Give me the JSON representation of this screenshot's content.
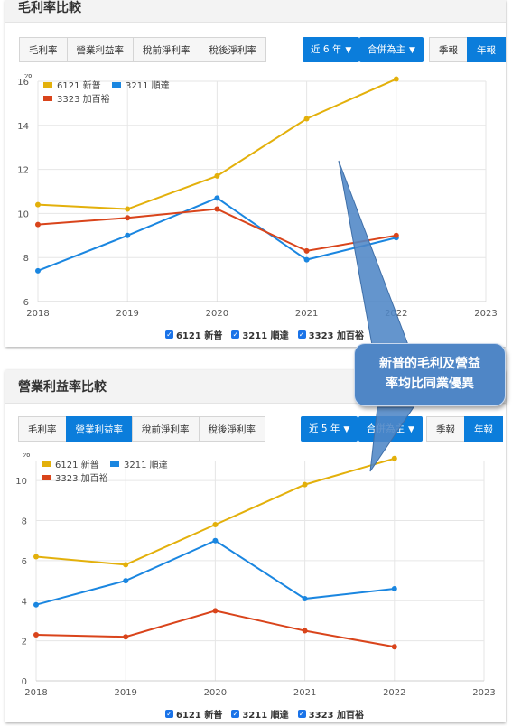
{
  "panel1": {
    "title": "毛利率比較",
    "tabs": [
      {
        "label": "毛利率",
        "active": true
      },
      {
        "label": "營業利益率",
        "active": false
      },
      {
        "label": "稅前淨利率",
        "active": false
      },
      {
        "label": "稅後淨利率",
        "active": false
      }
    ],
    "range_label": "近 6 年",
    "basis_label": "合併為主",
    "quarter_label": "季報",
    "year_label": "年報"
  },
  "panel2": {
    "title": "營業利益率比較",
    "tabs": [
      {
        "label": "毛利率",
        "active": false
      },
      {
        "label": "營業利益率",
        "active": true
      },
      {
        "label": "稅前淨利率",
        "active": false
      },
      {
        "label": "稅後淨利率",
        "active": false
      }
    ],
    "range_label": "近 5 年",
    "basis_label": "合併為主",
    "quarter_label": "季報",
    "year_label": "年報"
  },
  "callout": {
    "line1": "新普的毛利及營益",
    "line2": "率均比同業優異"
  },
  "colors": {
    "s6121": "#e3b00b",
    "s3211": "#1a86e0",
    "s3323": "#d9441b",
    "accent": "#0b7ddb"
  },
  "chart_data": [
    {
      "type": "line",
      "unit": "%",
      "x": [
        2018,
        2019,
        2020,
        2021,
        2022,
        2023
      ],
      "xlim": [
        2018,
        2023
      ],
      "ylim": [
        6,
        16
      ],
      "yticks": [
        6,
        8,
        10,
        12,
        14,
        16
      ],
      "grid": true,
      "legend_position": "top-left",
      "series": [
        {
          "name": "6121 新普",
          "x": [
            2018,
            2019,
            2020,
            2021,
            2022
          ],
          "values": [
            10.4,
            10.2,
            11.7,
            14.3,
            16.1
          ]
        },
        {
          "name": "3211 順達",
          "x": [
            2018,
            2019,
            2020,
            2021,
            2022
          ],
          "values": [
            7.4,
            9.0,
            10.7,
            7.9,
            8.9
          ]
        },
        {
          "name": "3323 加百裕",
          "x": [
            2018,
            2019,
            2020,
            2021,
            2022
          ],
          "values": [
            9.5,
            9.8,
            10.2,
            8.3,
            9.0
          ]
        }
      ]
    },
    {
      "type": "line",
      "unit": "%",
      "x": [
        2018,
        2019,
        2020,
        2021,
        2022,
        2023
      ],
      "xlim": [
        2018,
        2023
      ],
      "ylim": [
        0,
        11
      ],
      "yticks": [
        0,
        2,
        4,
        6,
        8,
        10
      ],
      "grid": true,
      "legend_position": "top-left",
      "series": [
        {
          "name": "6121 新普",
          "x": [
            2018,
            2019,
            2020,
            2021,
            2022
          ],
          "values": [
            6.2,
            5.8,
            7.8,
            9.8,
            11.1
          ]
        },
        {
          "name": "3211 順達",
          "x": [
            2018,
            2019,
            2020,
            2021,
            2022
          ],
          "values": [
            3.8,
            5.0,
            7.0,
            4.1,
            4.6
          ]
        },
        {
          "name": "3323 加百裕",
          "x": [
            2018,
            2019,
            2020,
            2021,
            2022
          ],
          "values": [
            2.3,
            2.2,
            3.5,
            2.5,
            1.7
          ]
        }
      ]
    }
  ]
}
